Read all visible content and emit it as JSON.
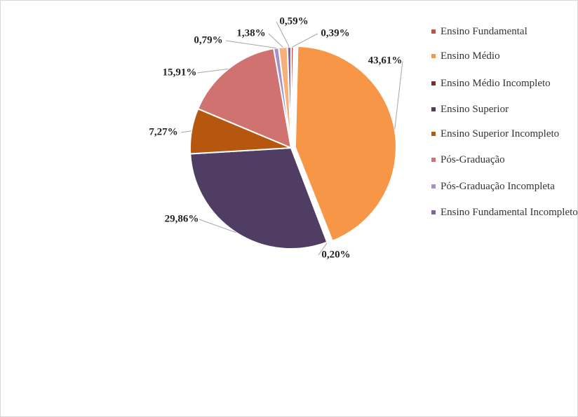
{
  "chart_data": {
    "type": "pie",
    "categories": [
      "Ensino Fundamental",
      "Ensino Médio",
      "Ensino Médio Incompleto",
      "Ensino Superior",
      "Ensino Superior Incompleto",
      "Pós-Graduação",
      "Pós-Graduação Incompleta",
      null,
      "Ensino Fundamental Incompleto"
    ],
    "values": [
      0.39,
      43.61,
      0.2,
      29.86,
      7.27,
      15.91,
      0.79,
      1.38,
      0.59
    ],
    "value_labels": [
      "0,39%",
      "43,61%",
      "0,20%",
      "29,86%",
      "7,27%",
      "15,91%",
      "0,79%",
      "1,38%",
      "0,59%"
    ],
    "colors": [
      "#c0504d",
      "#f79646",
      "#7b2c2c",
      "#4f3d63",
      "#b5570f",
      "#cf7270",
      "#a58fc6",
      "#f6b07a",
      "#8064a2"
    ],
    "legend": "right"
  }
}
